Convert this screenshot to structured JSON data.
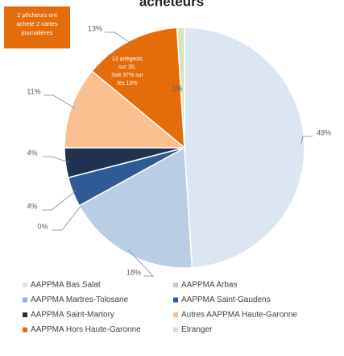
{
  "chart_data": {
    "type": "pie",
    "title": "acheteurs",
    "categories": [
      "AAPPMA Bas Salat",
      "AAPPMA Arbas",
      "AAPPMA Martres-Tolosane",
      "AAPPMA Saint-Gaudens",
      "AAPPMA Saint-Martory",
      "Autres AAPPMA Haute-Garonne",
      "AAPPMA Hors Haute-Garonne",
      "Etranger"
    ],
    "values": [
      49,
      18,
      0,
      4,
      4,
      11,
      13,
      1
    ],
    "value_labels": [
      "49%",
      "18%",
      "0%",
      "4%",
      "4%",
      "11%",
      "13%",
      "1%"
    ],
    "colors": [
      "#dce6f2",
      "#b9cde5",
      "#95b3d7",
      "#2e5a96",
      "#1f3350",
      "#fac090",
      "#e46c0a",
      "#d7e4bc"
    ],
    "annotations": [
      {
        "lines": [
          "2 pêcheurs ont",
          "acheté 2 cartes",
          "journalières"
        ]
      },
      {
        "lines": [
          "13 ariégeois",
          "sur 35,",
          "Soit 37% sur",
          "les 13%"
        ]
      }
    ]
  }
}
